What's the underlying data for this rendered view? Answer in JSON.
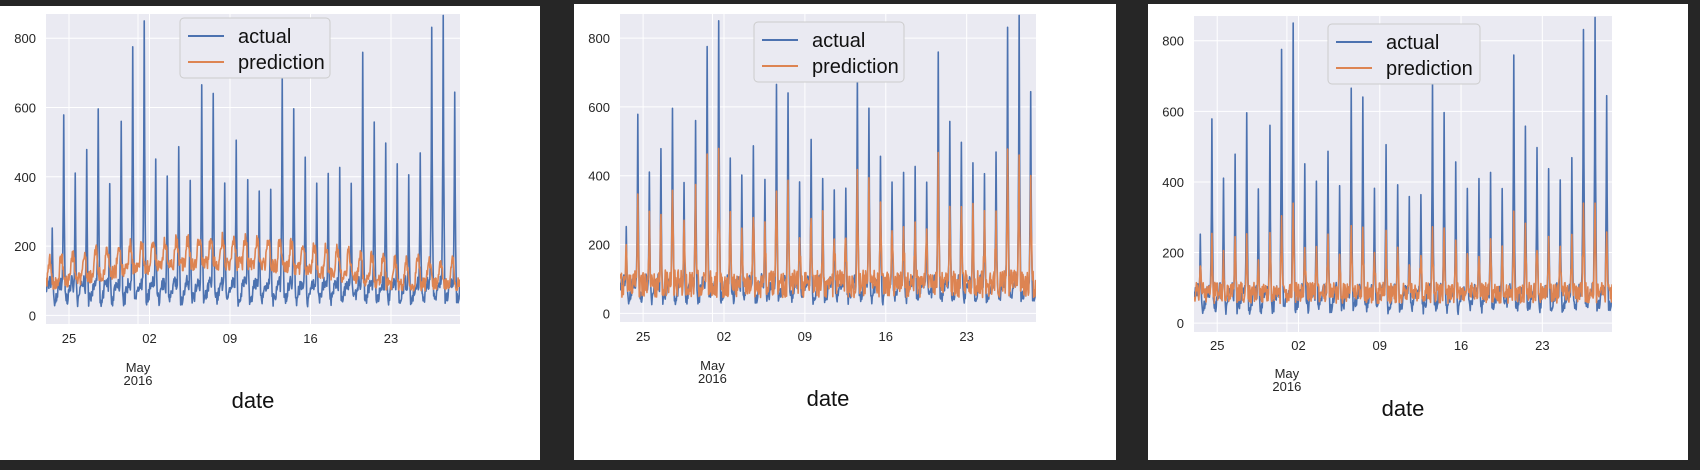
{
  "panels": [
    {
      "id": 0,
      "prediction_style": "smooth"
    },
    {
      "id": 1,
      "prediction_style": "spiky"
    },
    {
      "id": 2,
      "prediction_style": "damped"
    }
  ],
  "chart_data": [
    {
      "type": "line",
      "x_type": "date",
      "xlim": [
        "2016-04-23",
        "2016-05-29"
      ],
      "ylim": [
        -25,
        870
      ],
      "y_ticks": [
        0,
        200,
        400,
        600,
        800
      ],
      "x_ticks": [
        {
          "date": "2016-04-25",
          "label": "25"
        },
        {
          "date": "2016-05-02",
          "label": "02"
        },
        {
          "date": "2016-05-09",
          "label": "09"
        },
        {
          "date": "2016-05-16",
          "label": "16"
        },
        {
          "date": "2016-05-23",
          "label": "23"
        }
      ],
      "x_secondary_label": [
        "May",
        "2016"
      ],
      "xlabel": "date",
      "ylabel": "",
      "legend": {
        "position": "upper center",
        "entries": [
          "actual",
          "prediction"
        ]
      },
      "grid": true,
      "series": [
        {
          "name": "actual",
          "color": "#4c72b0",
          "baseline": 70,
          "peaks": [
            {
              "x": "2016-04-23",
              "y": 260
            },
            {
              "x": "2016-04-24",
              "y": 580
            },
            {
              "x": "2016-04-25",
              "y": 400
            },
            {
              "x": "2016-04-26",
              "y": 460
            },
            {
              "x": "2016-04-27",
              "y": 590
            },
            {
              "x": "2016-04-28",
              "y": 370
            },
            {
              "x": "2016-04-29",
              "y": 560
            },
            {
              "x": "2016-04-30",
              "y": 780
            },
            {
              "x": "2016-05-01",
              "y": 840
            },
            {
              "x": "2016-05-02",
              "y": 450
            },
            {
              "x": "2016-05-03",
              "y": 410
            },
            {
              "x": "2016-05-04",
              "y": 500
            },
            {
              "x": "2016-05-05",
              "y": 400
            },
            {
              "x": "2016-05-06",
              "y": 670
            },
            {
              "x": "2016-05-07",
              "y": 640
            },
            {
              "x": "2016-05-08",
              "y": 400
            },
            {
              "x": "2016-05-09",
              "y": 490
            },
            {
              "x": "2016-05-10",
              "y": 400
            },
            {
              "x": "2016-05-11",
              "y": 370
            },
            {
              "x": "2016-05-12",
              "y": 380
            },
            {
              "x": "2016-05-13",
              "y": 680
            },
            {
              "x": "2016-05-14",
              "y": 600
            },
            {
              "x": "2016-05-15",
              "y": 450
            },
            {
              "x": "2016-05-16",
              "y": 400
            },
            {
              "x": "2016-05-17",
              "y": 400
            },
            {
              "x": "2016-05-18",
              "y": 420
            },
            {
              "x": "2016-05-19",
              "y": 380
            },
            {
              "x": "2016-05-20",
              "y": 740
            },
            {
              "x": "2016-05-21",
              "y": 560
            },
            {
              "x": "2016-05-22",
              "y": 490
            },
            {
              "x": "2016-05-23",
              "y": 450
            },
            {
              "x": "2016-05-24",
              "y": 400
            },
            {
              "x": "2016-05-25",
              "y": 480
            },
            {
              "x": "2016-05-26",
              "y": 830
            },
            {
              "x": "2016-05-27",
              "y": 850
            },
            {
              "x": "2016-05-28",
              "y": 650
            }
          ]
        },
        {
          "name": "prediction",
          "color": "#dd8452",
          "mean": 150,
          "max": 280
        }
      ]
    },
    {
      "type": "line",
      "x_type": "date",
      "xlim": [
        "2016-04-23",
        "2016-05-29"
      ],
      "ylim": [
        -25,
        870
      ],
      "y_ticks": [
        0,
        200,
        400,
        600,
        800
      ],
      "x_ticks": [
        {
          "date": "2016-04-25",
          "label": "25"
        },
        {
          "date": "2016-05-02",
          "label": "02"
        },
        {
          "date": "2016-05-09",
          "label": "09"
        },
        {
          "date": "2016-05-16",
          "label": "16"
        },
        {
          "date": "2016-05-23",
          "label": "23"
        }
      ],
      "x_secondary_label": [
        "May",
        "2016"
      ],
      "xlabel": "date",
      "ylabel": "",
      "legend": {
        "position": "upper center",
        "entries": [
          "actual",
          "prediction"
        ]
      },
      "grid": true,
      "series": [
        {
          "name": "actual",
          "color": "#4c72b0",
          "same_as_panel": 0
        },
        {
          "name": "prediction",
          "color": "#dd8452",
          "mean": 120,
          "max": 540
        }
      ]
    },
    {
      "type": "line",
      "x_type": "date",
      "xlim": [
        "2016-04-23",
        "2016-05-29"
      ],
      "ylim": [
        -25,
        870
      ],
      "y_ticks": [
        0,
        200,
        400,
        600,
        800
      ],
      "x_ticks": [
        {
          "date": "2016-04-25",
          "label": "25"
        },
        {
          "date": "2016-05-02",
          "label": "02"
        },
        {
          "date": "2016-05-09",
          "label": "09"
        },
        {
          "date": "2016-05-16",
          "label": "16"
        },
        {
          "date": "2016-05-23",
          "label": "23"
        }
      ],
      "x_secondary_label": [
        "May",
        "2016"
      ],
      "xlabel": "date",
      "ylabel": "",
      "legend": {
        "position": "upper center",
        "entries": [
          "actual",
          "prediction"
        ]
      },
      "grid": true,
      "series": [
        {
          "name": "actual",
          "color": "#4c72b0",
          "same_as_panel": 0
        },
        {
          "name": "prediction",
          "color": "#dd8452",
          "mean": 110,
          "max": 340
        }
      ]
    }
  ]
}
